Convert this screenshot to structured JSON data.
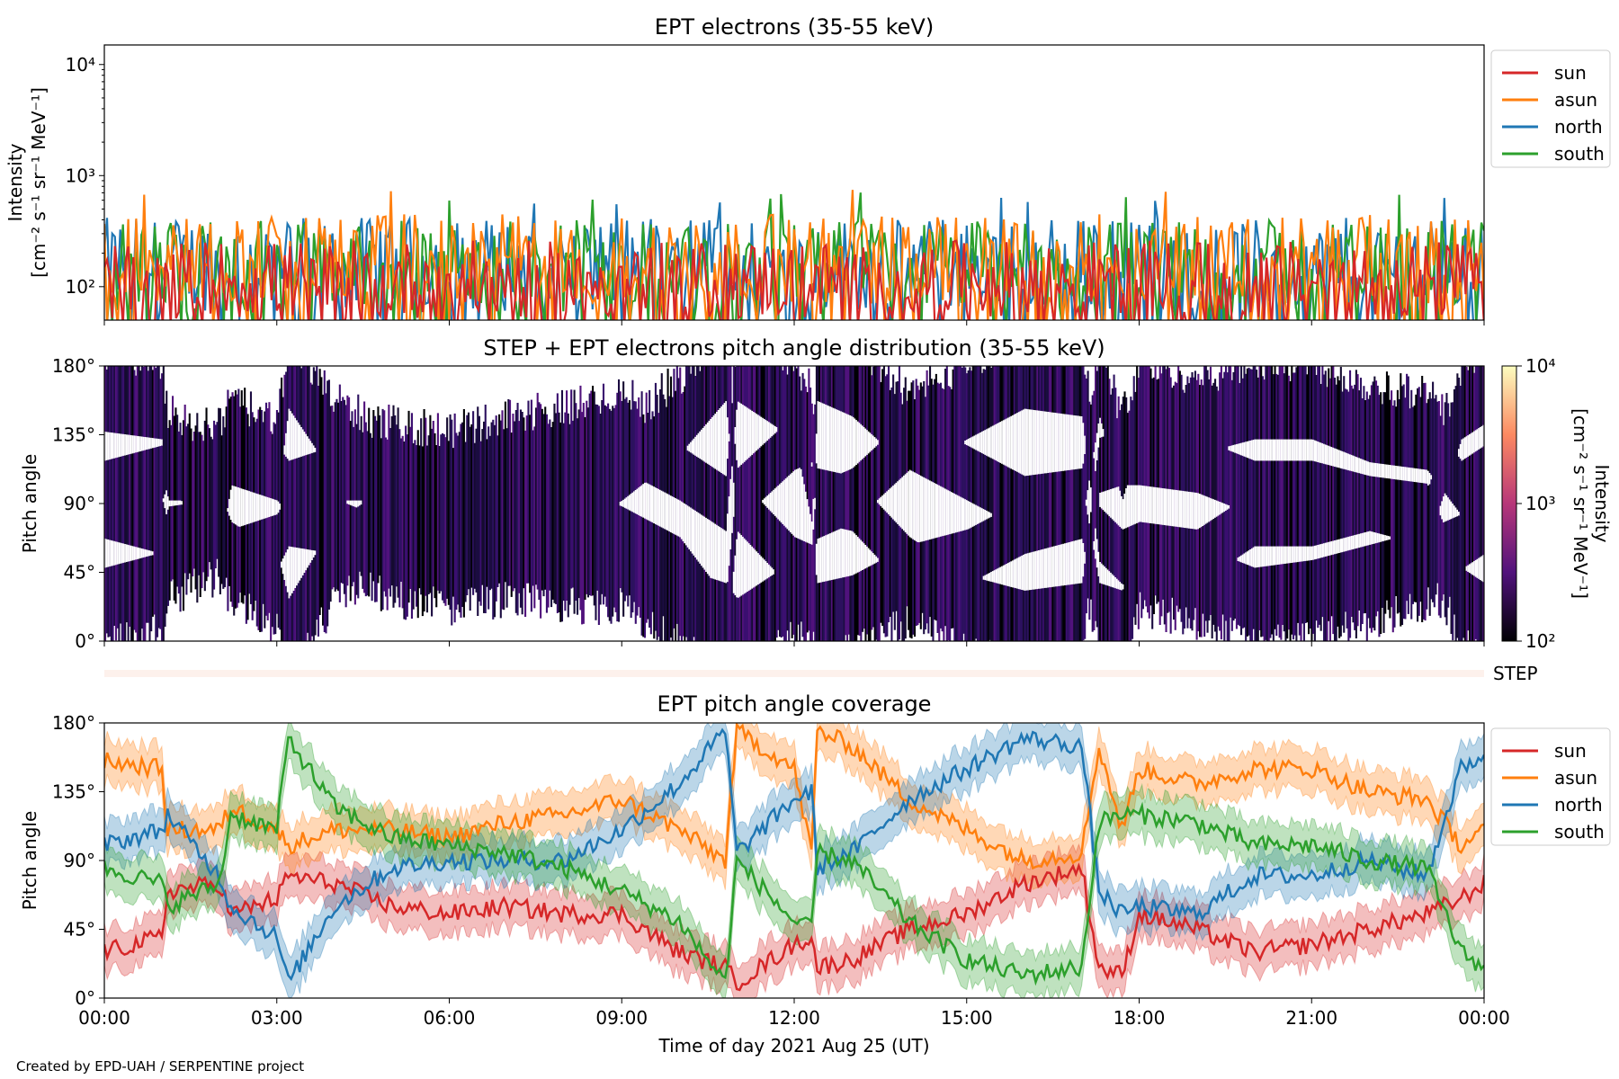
{
  "footer": "Created by EPD-UAH / SERPENTINE project",
  "colors": {
    "sun": "#d62728",
    "asun": "#ff7f0e",
    "north": "#1f77b4",
    "south": "#2ca02c"
  },
  "chart_data": [
    {
      "type": "line",
      "title": "EPT electrons (35-55 keV)",
      "ylabel_line1": "Intensity",
      "ylabel_line2": "[cm⁻² s⁻¹ sr⁻¹ MeV⁻¹]",
      "yscale": "log",
      "ylim": [
        50,
        15000
      ],
      "ytick_labels": [
        "10²",
        "10³",
        "10⁴"
      ],
      "ytick_values": [
        100,
        1000,
        10000
      ],
      "xlim_hours": [
        0,
        24
      ],
      "legend": [
        "sun",
        "asun",
        "north",
        "south"
      ],
      "legend_position": "outside-right-top",
      "series": [
        {
          "name": "sun",
          "typical_range": [
            50,
            260
          ],
          "color": "#d62728"
        },
        {
          "name": "asun",
          "typical_range": [
            70,
            450
          ],
          "peak": 800,
          "color": "#ff7f0e"
        },
        {
          "name": "north",
          "typical_range": [
            60,
            420
          ],
          "peak": 640,
          "color": "#1f77b4"
        },
        {
          "name": "south",
          "typical_range": [
            60,
            400
          ],
          "peak": 720,
          "color": "#2ca02c"
        }
      ]
    },
    {
      "type": "heatmap",
      "title": "STEP + EPT electrons pitch angle distribution (35-55 keV)",
      "ylabel": "Pitch angle",
      "ylim": [
        0,
        180
      ],
      "ytick_labels": [
        "0°",
        "45°",
        "90°",
        "135°",
        "180°"
      ],
      "ytick_values": [
        0,
        45,
        90,
        135,
        180
      ],
      "colorbar": {
        "label_line1": "Intensity",
        "label_line2": "[cm⁻² s⁻¹ sr⁻¹ MeV⁻¹]",
        "scale": "log",
        "range": [
          100,
          10000
        ],
        "tick_labels": [
          "10²",
          "10³",
          "10⁴"
        ]
      },
      "step_label": "STEP"
    },
    {
      "type": "line",
      "title": "EPT pitch angle coverage",
      "ylabel": "Pitch angle",
      "xlabel": "Time of day 2021 Aug 25 (UT)",
      "ylim": [
        0,
        180
      ],
      "ytick_labels": [
        "0°",
        "45°",
        "90°",
        "135°",
        "180°"
      ],
      "ytick_values": [
        0,
        45,
        90,
        135,
        180
      ],
      "xtick_labels": [
        "00:00",
        "03:00",
        "06:00",
        "09:00",
        "12:00",
        "15:00",
        "18:00",
        "21:00",
        "00:00"
      ],
      "xtick_hours": [
        0,
        3,
        6,
        9,
        12,
        15,
        18,
        21,
        24
      ],
      "legend": [
        "sun",
        "asun",
        "north",
        "south"
      ],
      "legend_position": "outside-right-top",
      "x_hours": [
        0,
        1,
        1.1,
        2,
        2.2,
        3,
        3.2,
        4,
        5,
        6,
        7,
        8,
        9,
        10,
        10.8,
        11,
        12,
        12.3,
        12.4,
        13,
        14,
        15,
        16,
        17,
        17.3,
        17.7,
        18,
        19,
        20,
        21,
        22,
        23,
        23.6,
        24
      ],
      "series": [
        {
          "name": "sun",
          "y": [
            30,
            40,
            70,
            75,
            55,
            65,
            80,
            75,
            60,
            55,
            60,
            55,
            55,
            30,
            20,
            10,
            35,
            40,
            20,
            25,
            45,
            55,
            75,
            85,
            20,
            15,
            55,
            45,
            30,
            35,
            45,
            55,
            65,
            75
          ]
        },
        {
          "name": "asun",
          "y": [
            155,
            150,
            110,
            110,
            125,
            110,
            100,
            110,
            110,
            105,
            115,
            120,
            130,
            110,
            90,
            175,
            150,
            95,
            175,
            165,
            130,
            110,
            90,
            95,
            165,
            110,
            150,
            140,
            150,
            150,
            135,
            130,
            100,
            110
          ]
        },
        {
          "name": "north",
          "y": [
            100,
            110,
            120,
            80,
            60,
            40,
            10,
            60,
            85,
            90,
            90,
            90,
            110,
            140,
            175,
            95,
            130,
            135,
            85,
            95,
            130,
            150,
            170,
            165,
            70,
            55,
            60,
            55,
            80,
            80,
            90,
            80,
            150,
            160
          ]
        },
        {
          "name": "south",
          "y": [
            85,
            75,
            60,
            75,
            120,
            110,
            170,
            125,
            105,
            100,
            95,
            85,
            70,
            50,
            10,
            90,
            50,
            45,
            95,
            90,
            50,
            25,
            15,
            20,
            115,
            120,
            120,
            115,
            100,
            100,
            90,
            85,
            30,
            20
          ]
        }
      ]
    }
  ]
}
